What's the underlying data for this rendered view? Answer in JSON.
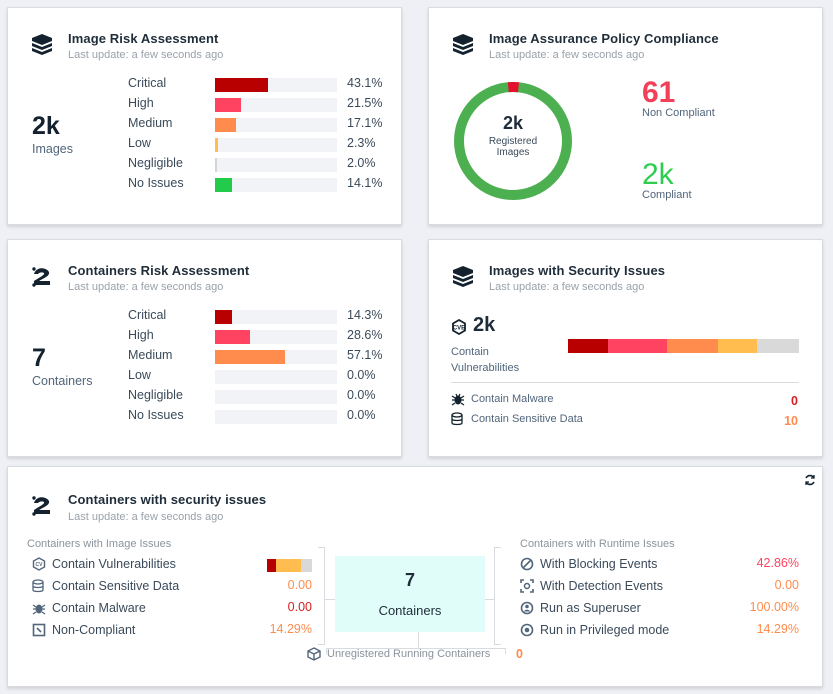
{
  "image_risk": {
    "title": "Image Risk Assessment",
    "subtitle": "Last update: a few seconds ago",
    "count": "2k",
    "count_label": "Images",
    "rows": [
      {
        "label": "Critical",
        "value": "43.1%",
        "pct": 43.1,
        "color": "#b80000"
      },
      {
        "label": "High",
        "value": "21.5%",
        "pct": 21.5,
        "color": "#ff4361"
      },
      {
        "label": "Medium",
        "value": "17.1%",
        "pct": 17.1,
        "color": "#ff8c4d"
      },
      {
        "label": "Low",
        "value": "2.3%",
        "pct": 2.3,
        "color": "#ffbd4f"
      },
      {
        "label": "Negligible",
        "value": "2.0%",
        "pct": 2.0,
        "color": "#d3d5d8"
      },
      {
        "label": "No Issues",
        "value": "14.1%",
        "pct": 14.1,
        "color": "#22cc4a"
      }
    ]
  },
  "policy": {
    "title": "Image Assurance Policy Compliance",
    "subtitle": "Last update: a few seconds ago",
    "center_count": "2k",
    "center_label1": "Registered",
    "center_label2": "Images",
    "non_compliant": "61",
    "non_compliant_label": "Non Compliant",
    "compliant": "2k",
    "compliant_label": "Compliant",
    "non_compliant_fraction": 0.03,
    "colors": {
      "compliant": "#4caf50",
      "non_compliant": "#e3102e"
    }
  },
  "containers_risk": {
    "title": "Containers Risk Assessment",
    "subtitle": "Last update: a few seconds ago",
    "count": "7",
    "count_label": "Containers",
    "rows": [
      {
        "label": "Critical",
        "value": "14.3%",
        "pct": 14.3,
        "color": "#b80000"
      },
      {
        "label": "High",
        "value": "28.6%",
        "pct": 28.6,
        "color": "#ff4361"
      },
      {
        "label": "Medium",
        "value": "57.1%",
        "pct": 57.1,
        "color": "#ff8c4d"
      },
      {
        "label": "Low",
        "value": "0.0%",
        "pct": 0,
        "color": "#ffbd4f"
      },
      {
        "label": "Negligible",
        "value": "0.0%",
        "pct": 0,
        "color": "#d3d5d8"
      },
      {
        "label": "No Issues",
        "value": "0.0%",
        "pct": 0,
        "color": "#22cc4a"
      }
    ]
  },
  "images_security": {
    "title": "Images with Security Issues",
    "subtitle": "Last update: a few seconds ago",
    "count": "2k",
    "count_label1": "Contain",
    "count_label2": "Vulnerabilities",
    "segments": [
      {
        "frac": 0.173,
        "color": "#b80000"
      },
      {
        "frac": 0.255,
        "color": "#ff4361"
      },
      {
        "frac": 0.221,
        "color": "#ff8c4d"
      },
      {
        "frac": 0.169,
        "color": "#ffbd4f"
      },
      {
        "frac": 0.182,
        "color": "#d9d9d9"
      }
    ],
    "malware_label": "Contain Malware",
    "malware_value": "0",
    "sensitive_label": "Contain Sensitive Data",
    "sensitive_value": "10"
  },
  "containers_security": {
    "title": "Containers with security issues",
    "subtitle": "Last update: a few seconds ago",
    "image_issues_header": "Containers with Image Issues",
    "image_issues": [
      {
        "label": "Contain Vulnerabilities",
        "icon": "cve-icon"
      },
      {
        "label": "Contain Sensitive Data",
        "value": "0.00",
        "color": "#ff8c4d",
        "icon": "database-icon"
      },
      {
        "label": "Contain Malware",
        "value": "0.00",
        "color": "#d42020",
        "icon": "bug-icon"
      },
      {
        "label": "Non-Compliant",
        "value": "14.29%",
        "color": "#ff8c4d",
        "icon": "non-compliant-icon"
      }
    ],
    "vuln_segments": [
      {
        "frac": 0.2,
        "color": "#b80000"
      },
      {
        "frac": 0.55,
        "color": "#ffbd4f"
      },
      {
        "frac": 0.25,
        "color": "#d9d9d9"
      }
    ],
    "center_count": "7",
    "center_label": "Containers",
    "runtime_header": "Containers with Runtime Issues",
    "runtime_issues": [
      {
        "label": "With Blocking Events",
        "value": "42.86%",
        "color": "#ff4361",
        "icon": "block-icon"
      },
      {
        "label": "With Detection Events",
        "value": "0.00",
        "color": "#ff8c4d",
        "icon": "detection-icon"
      },
      {
        "label": "Run as Superuser",
        "value": "100.00%",
        "color": "#ff8c4d",
        "icon": "superuser-icon"
      },
      {
        "label": "Run in Privileged mode",
        "value": "14.29%",
        "color": "#ff8c4d",
        "icon": "privileged-icon"
      }
    ],
    "unregistered_label": "Unregistered Running Containers",
    "unregistered_value": "0"
  }
}
